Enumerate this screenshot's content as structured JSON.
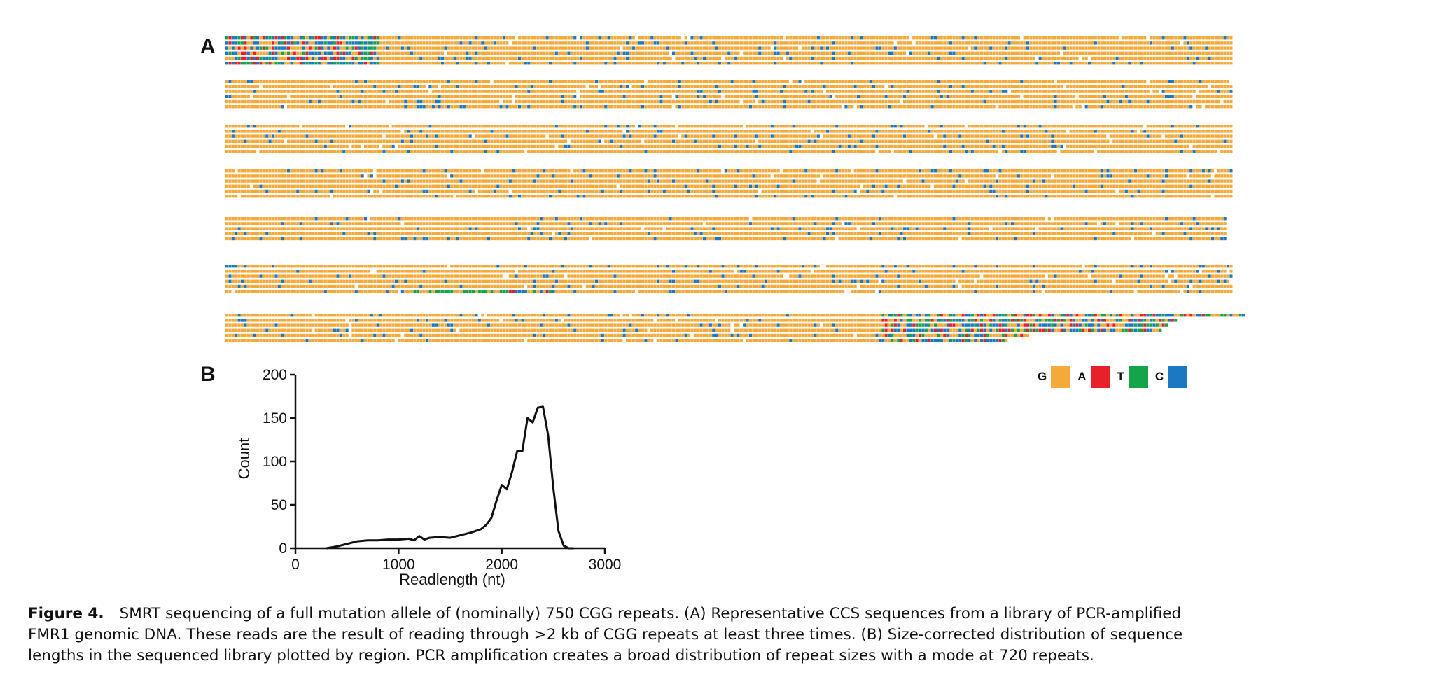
{
  "panel_a_label": "A",
  "panel_b_label": "B",
  "legend": [
    {
      "letter": "G",
      "color": "#F4A93B"
    },
    {
      "letter": "A",
      "color": "#E8202A"
    },
    {
      "letter": "T",
      "color": "#14A54B"
    },
    {
      "letter": "C",
      "color": "#1C78C0"
    }
  ],
  "chart_data": {
    "type": "line",
    "xlabel": "Readlength (nt)",
    "ylabel": "Count",
    "xlim": [
      0,
      3000
    ],
    "ylim": [
      0,
      200
    ],
    "xticks": [
      "0",
      "1000",
      "2000",
      "3000"
    ],
    "yticks": [
      "0",
      "50",
      "100",
      "150",
      "200"
    ],
    "x": [
      300,
      400,
      500,
      600,
      700,
      800,
      900,
      1000,
      1100,
      1150,
      1200,
      1250,
      1300,
      1400,
      1500,
      1600,
      1700,
      1750,
      1800,
      1850,
      1900,
      1950,
      2000,
      2050,
      2100,
      2150,
      2200,
      2250,
      2300,
      2350,
      2400,
      2450,
      2500,
      2550,
      2600,
      2650,
      2700
    ],
    "y": [
      0,
      2,
      5,
      8,
      9,
      9,
      10,
      10,
      11,
      9,
      14,
      10,
      12,
      13,
      12,
      15,
      18,
      20,
      22,
      27,
      35,
      55,
      73,
      68,
      88,
      112,
      112,
      150,
      145,
      162,
      163,
      130,
      70,
      20,
      3,
      0,
      0
    ]
  },
  "caption": {
    "figure_label": "Figure 4.",
    "line1": "SMRT sequencing of a full mutation allele of (nominally) 750 CGG repeats. (A) Representative CCS sequences from a library of PCR-amplified",
    "line2": "FMR1 genomic DNA. These reads are the result of reading through >2 kb of CGG repeats at least three times. (B) Size-corrected distribution of sequence",
    "line3": "lengths in the sequenced library plotted by region. PCR amplification creates a broad distribution of repeat sizes with a mode at 720 repeats."
  }
}
